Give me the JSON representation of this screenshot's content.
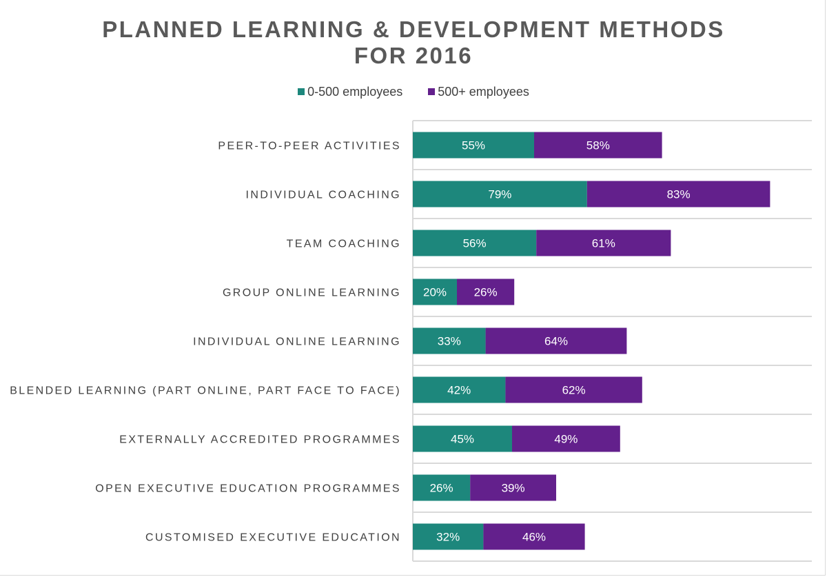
{
  "chart_data": {
    "type": "bar",
    "orientation": "horizontal",
    "stacked": true,
    "title": "PLANNED LEARNING & DEVELOPMENT METHODS FOR 2016",
    "title_lines": [
      "PLANNED LEARNING & DEVELOPMENT METHODS",
      "FOR 2016"
    ],
    "categories": [
      "PEER-TO-PEER ACTIVITIES",
      "INDIVIDUAL COACHING",
      "TEAM COACHING",
      "GROUP ONLINE LEARNING",
      "INDIVIDUAL ONLINE LEARNING",
      "BLENDED LEARNING (PART ONLINE, PART FACE TO FACE)",
      "EXTERNALLY ACCREDITED PROGRAMMES",
      "OPEN EXECUTIVE EDUCATION PROGRAMMES",
      "CUSTOMISED EXECUTIVE EDUCATION"
    ],
    "series": [
      {
        "name": "0-500 employees",
        "color": "#1d877c",
        "values": [
          55,
          79,
          56,
          20,
          33,
          42,
          45,
          26,
          32
        ]
      },
      {
        "name": "500+ employees",
        "color": "#63208c",
        "values": [
          58,
          83,
          61,
          26,
          64,
          62,
          49,
          39,
          46
        ]
      }
    ],
    "value_format": "percent",
    "xlim": [
      0,
      180
    ],
    "grid": "horizontal category separators",
    "legend": "top-center",
    "xlabel": "",
    "ylabel": ""
  }
}
